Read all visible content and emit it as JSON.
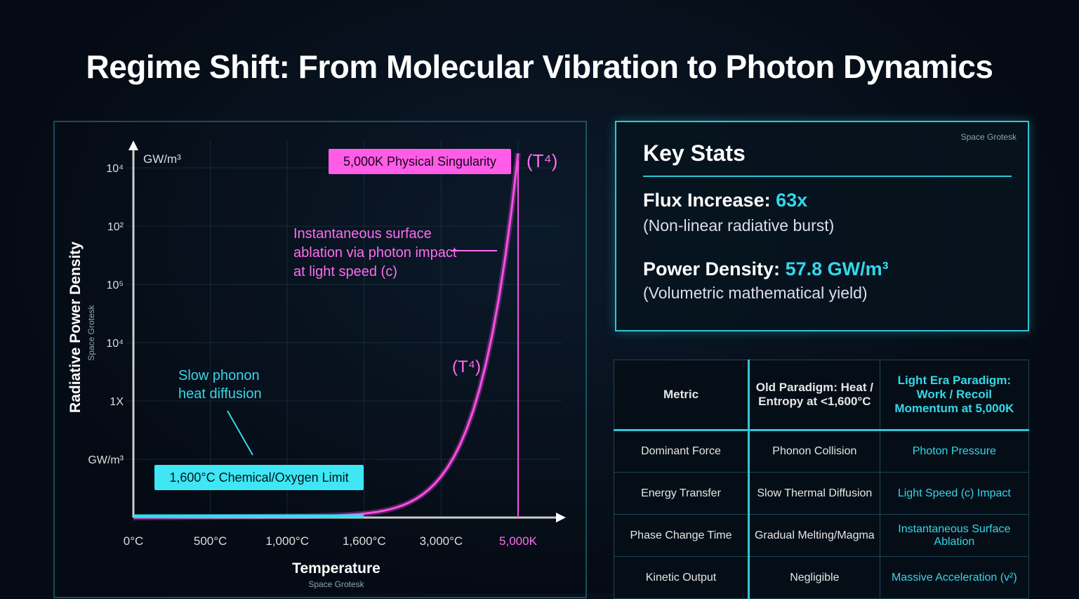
{
  "title": "Regime Shift: From Molecular Vibration to Photon Dynamics",
  "chart_data": {
    "type": "line",
    "xlabel": "Temperature",
    "xlabel_sub": "Space Grotesk",
    "ylabel": "Radiative Power Density",
    "ylabel_sub": "Space Grotesk",
    "y_unit": "GW/m³",
    "x_ticks": [
      "0°C",
      "500°C",
      "1,000°C",
      "1,600°C",
      "3,000°C",
      "5,000K"
    ],
    "y_ticks": [
      "GW/m³",
      "1X",
      "10⁴",
      "10⁵",
      "10²",
      "10⁴"
    ],
    "series": [
      {
        "color": "#ff4de8",
        "points": [
          [
            "0°C",
            0
          ],
          [
            "1,000°C",
            0.02
          ],
          [
            "1,600°C",
            0.08
          ],
          [
            "3,000°C",
            1.0
          ],
          [
            "5,000K",
            6.2
          ]
        ]
      }
    ],
    "curve_label": "(T⁴)",
    "top_label": "(T⁴)",
    "annotations": {
      "singularity": "5,000K Physical Singularity",
      "limit": "1,600°C Chemical/Oxygen Limit",
      "phonon": "Slow phonon heat diffusion",
      "photon": "Instantaneous surface ablation via photon impact at light speed (c)"
    },
    "grid": true
  },
  "stats": {
    "heading": "Key Stats",
    "tag": "Space Grotesk",
    "flux_label": "Flux Increase:",
    "flux_value": "63x",
    "flux_sub": "(Non-linear radiative burst)",
    "power_label": "Power Density:",
    "power_value": "57.8 GW/m³",
    "power_sub": "(Volumetric mathematical yield)"
  },
  "table": {
    "headers": [
      "Metric",
      "Old Paradigm: Heat / Entropy at <1,600°C",
      "Light Era Paradigm: Work / Recoil Momentum at 5,000K"
    ],
    "rows": [
      [
        "Dominant Force",
        "Phonon Collision",
        "Photon Pressure"
      ],
      [
        "Energy Transfer",
        "Slow Thermal Diffusion",
        "Light Speed (c) Impact"
      ],
      [
        "Phase Change Time",
        "Gradual Melting/Magma",
        "Instantaneous Surface Ablation"
      ],
      [
        "Kinetic Output",
        "Negligible",
        "Massive Acceleration (v²)"
      ]
    ]
  },
  "colors": {
    "cyan": "#2fc6d6",
    "magenta": "#ff4de8",
    "bg": "#050b14"
  }
}
